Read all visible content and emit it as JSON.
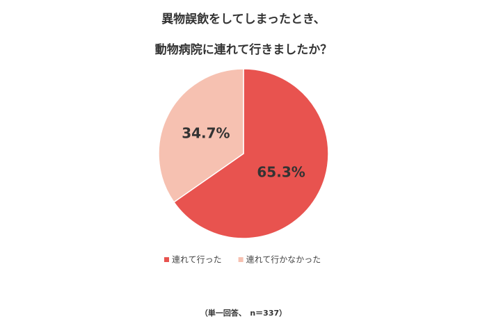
{
  "chart_data": {
    "type": "pie",
    "title": [
      "異物誤飲をしてしまったとき、",
      "動物病院に連れて行きましたか？"
    ],
    "categories": [
      "連れて行った",
      "連れて行かなかった"
    ],
    "values": [
      65.3,
      34.7
    ],
    "value_labels": [
      "65.3%",
      "34.7%"
    ],
    "colors": [
      "#e8534f",
      "#f6c1b1"
    ],
    "legend": "bottom",
    "note": "（単一回答、　n＝337）"
  }
}
